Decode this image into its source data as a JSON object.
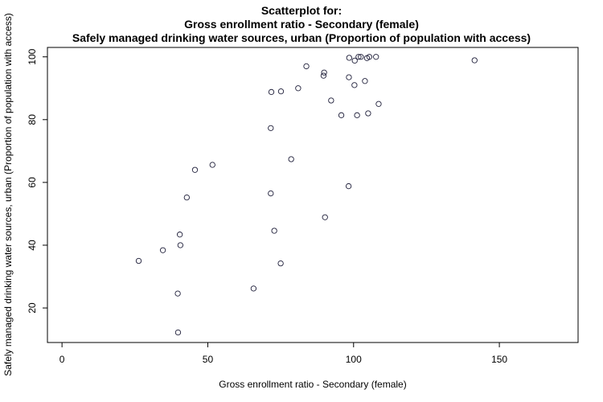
{
  "chart_data": {
    "type": "scatter",
    "title_lines": [
      "Scatterplot for:",
      "Gross enrollment ratio - Secondary (female)",
      "Safely managed drinking water sources, urban (Proportion of population with access)"
    ],
    "xlabel": "Gross enrollment ratio - Secondary (female)",
    "ylabel": "Safely managed drinking water sources, urban (Proportion of population with access)",
    "xlim": [
      -5,
      177
    ],
    "ylim": [
      9,
      103
    ],
    "x_ticks": [
      0,
      50,
      100,
      150
    ],
    "y_ticks": [
      20,
      40,
      60,
      80,
      100
    ],
    "grid": false,
    "marker": "open-circle",
    "points": [
      {
        "x": 26.3,
        "y": 35.0
      },
      {
        "x": 34.6,
        "y": 38.4
      },
      {
        "x": 39.7,
        "y": 24.6
      },
      {
        "x": 39.8,
        "y": 12.2
      },
      {
        "x": 40.4,
        "y": 43.4
      },
      {
        "x": 40.6,
        "y": 40.0
      },
      {
        "x": 42.8,
        "y": 55.2
      },
      {
        "x": 45.6,
        "y": 64.0
      },
      {
        "x": 51.6,
        "y": 65.6
      },
      {
        "x": 65.7,
        "y": 26.2
      },
      {
        "x": 71.6,
        "y": 56.5
      },
      {
        "x": 71.6,
        "y": 77.3
      },
      {
        "x": 71.8,
        "y": 88.8
      },
      {
        "x": 72.8,
        "y": 44.6
      },
      {
        "x": 75.0,
        "y": 34.2
      },
      {
        "x": 75.1,
        "y": 89.0
      },
      {
        "x": 78.6,
        "y": 67.4
      },
      {
        "x": 81.0,
        "y": 90.0
      },
      {
        "x": 83.8,
        "y": 97.0
      },
      {
        "x": 89.7,
        "y": 94.0
      },
      {
        "x": 89.9,
        "y": 95.0
      },
      {
        "x": 90.2,
        "y": 48.9
      },
      {
        "x": 92.3,
        "y": 86.1
      },
      {
        "x": 95.8,
        "y": 81.4
      },
      {
        "x": 98.3,
        "y": 58.8
      },
      {
        "x": 98.4,
        "y": 93.5
      },
      {
        "x": 98.5,
        "y": 99.7
      },
      {
        "x": 100.3,
        "y": 91.0
      },
      {
        "x": 100.4,
        "y": 98.8
      },
      {
        "x": 101.2,
        "y": 81.4
      },
      {
        "x": 101.7,
        "y": 100.0
      },
      {
        "x": 102.5,
        "y": 100.0
      },
      {
        "x": 103.9,
        "y": 92.3
      },
      {
        "x": 104.6,
        "y": 99.6
      },
      {
        "x": 105.0,
        "y": 82.0
      },
      {
        "x": 105.4,
        "y": 100.0
      },
      {
        "x": 107.7,
        "y": 100.0
      },
      {
        "x": 108.6,
        "y": 85.0
      },
      {
        "x": 141.5,
        "y": 98.9
      }
    ]
  }
}
